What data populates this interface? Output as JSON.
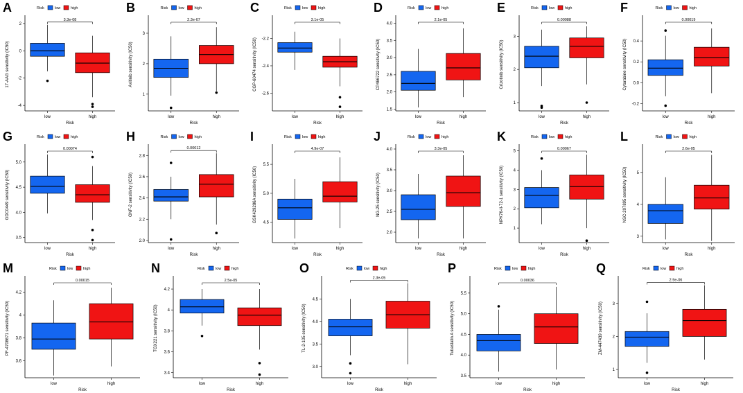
{
  "figure": {
    "legend_title": "Risk",
    "x_axis_label": "Risk",
    "groups": [
      "low",
      "high"
    ],
    "colors": {
      "low": "#1466f0",
      "high": "#f01414",
      "line": "#000000"
    }
  },
  "chart_data": [
    {
      "type": "box",
      "panel": "A",
      "ylabel": "17-AAG sensitivity (IC50)",
      "pvalue": "3.3e-08",
      "ylim": [
        -4.4,
        2.4
      ],
      "yticks": [
        -4,
        -2,
        0,
        2
      ],
      "groups": [
        {
          "name": "low",
          "q1": -0.4,
          "median": 0.0,
          "q3": 0.55,
          "whisker_low": -1.5,
          "whisker_high": 1.9,
          "outliers": [
            -2.2
          ]
        },
        {
          "name": "high",
          "q1": -1.6,
          "median": -0.9,
          "q3": -0.15,
          "whisker_low": -3.4,
          "whisker_high": 1.1,
          "outliers": [
            -3.9,
            -4.1
          ]
        }
      ]
    },
    {
      "type": "box",
      "panel": "B",
      "ylabel": "Axitinib sensitivity (IC50)",
      "pvalue": "2.3e-07",
      "ylim": [
        0.45,
        3.5
      ],
      "yticks": [
        1,
        2,
        3
      ],
      "groups": [
        {
          "name": "low",
          "q1": 1.55,
          "median": 1.85,
          "q3": 2.15,
          "whisker_low": 0.95,
          "whisker_high": 2.9,
          "outliers": [
            0.55
          ]
        },
        {
          "name": "high",
          "q1": 2.0,
          "median": 2.3,
          "q3": 2.6,
          "whisker_low": 1.1,
          "whisker_high": 3.2,
          "outliers": [
            1.05
          ]
        }
      ]
    },
    {
      "type": "box",
      "panel": "C",
      "ylabel": "CGP-60474 sensitivity (IC50)",
      "pvalue": "3.1e-05",
      "ylim": [
        -2.73,
        -2.05
      ],
      "yticks": [
        -2.6,
        -2.4,
        -2.2
      ],
      "groups": [
        {
          "name": "low",
          "q1": -2.3,
          "median": -2.27,
          "q3": -2.23,
          "whisker_low": -2.43,
          "whisker_high": -2.15,
          "outliers": []
        },
        {
          "name": "high",
          "q1": -2.41,
          "median": -2.37,
          "q3": -2.33,
          "whisker_low": -2.55,
          "whisker_high": -2.2,
          "outliers": [
            -2.63,
            -2.7
          ]
        }
      ]
    },
    {
      "type": "box",
      "panel": "D",
      "ylabel": "CP466722 sensitivity (IC50)",
      "pvalue": "2.1e-05",
      "ylim": [
        1.45,
        4.15
      ],
      "yticks": [
        1.5,
        2.0,
        2.5,
        3.0,
        3.5,
        4.0
      ],
      "ytick_labels": [
        "1.5",
        "2.0",
        "2.5",
        "3.0",
        "3.5",
        "4.0"
      ],
      "groups": [
        {
          "name": "low",
          "q1": 2.05,
          "median": 2.25,
          "q3": 2.6,
          "whisker_low": 1.55,
          "whisker_high": 3.25,
          "outliers": []
        },
        {
          "name": "high",
          "q1": 2.35,
          "median": 2.7,
          "q3": 3.12,
          "whisker_low": 1.85,
          "whisker_high": 3.85,
          "outliers": []
        }
      ]
    },
    {
      "type": "box",
      "panel": "E",
      "ylabel": "Crizotinib sensitivity (IC50)",
      "pvalue": "0.00088",
      "ylim": [
        0.75,
        3.55
      ],
      "yticks": [
        1,
        2,
        3
      ],
      "groups": [
        {
          "name": "low",
          "q1": 2.05,
          "median": 2.4,
          "q3": 2.7,
          "whisker_low": 1.5,
          "whisker_high": 3.2,
          "outliers": [
            0.9,
            0.85
          ]
        },
        {
          "name": "high",
          "q1": 2.35,
          "median": 2.7,
          "q3": 2.95,
          "whisker_low": 1.55,
          "whisker_high": 3.3,
          "outliers": [
            1.0
          ]
        }
      ]
    },
    {
      "type": "box",
      "panel": "F",
      "ylabel": "Cytarabine sensitivity (IC50)",
      "pvalue": "0.00019",
      "ylim": [
        -0.27,
        0.62
      ],
      "yticks": [
        -0.2,
        0.0,
        0.2,
        0.4
      ],
      "ytick_labels": [
        "-0.2",
        "0.0",
        "0.2",
        "0.4"
      ],
      "groups": [
        {
          "name": "low",
          "q1": 0.07,
          "median": 0.14,
          "q3": 0.22,
          "whisker_low": -0.13,
          "whisker_high": 0.45,
          "outliers": [
            0.5,
            -0.22
          ]
        },
        {
          "name": "high",
          "q1": 0.16,
          "median": 0.24,
          "q3": 0.34,
          "whisker_low": -0.1,
          "whisker_high": 0.52,
          "outliers": []
        }
      ]
    },
    {
      "type": "box",
      "panel": "G",
      "ylabel": "GDC0449 sensitivity (IC50)",
      "pvalue": "0.00074",
      "ylim": [
        3.4,
        5.3
      ],
      "yticks": [
        3.5,
        4.0,
        4.5,
        5.0
      ],
      "ytick_labels": [
        "3.5",
        "4.0",
        "4.5",
        "5.0"
      ],
      "groups": [
        {
          "name": "low",
          "q1": 4.38,
          "median": 4.52,
          "q3": 4.72,
          "whisker_low": 3.98,
          "whisker_high": 5.15,
          "outliers": []
        },
        {
          "name": "high",
          "q1": 4.2,
          "median": 4.35,
          "q3": 4.55,
          "whisker_low": 3.85,
          "whisker_high": 4.92,
          "outliers": [
            5.1,
            3.65,
            3.45
          ]
        }
      ]
    },
    {
      "type": "box",
      "panel": "H",
      "ylabel": "GNF-2 sensitivity (IC50)",
      "pvalue": "0.00012",
      "ylim": [
        1.98,
        2.88
      ],
      "yticks": [
        2.0,
        2.2,
        2.4,
        2.6,
        2.8
      ],
      "ytick_labels": [
        "2.0",
        "2.2",
        "2.4",
        "2.6",
        "2.8"
      ],
      "groups": [
        {
          "name": "low",
          "q1": 2.37,
          "median": 2.41,
          "q3": 2.48,
          "whisker_low": 2.2,
          "whisker_high": 2.6,
          "outliers": [
            2.73,
            2.01
          ]
        },
        {
          "name": "high",
          "q1": 2.41,
          "median": 2.53,
          "q3": 2.62,
          "whisker_low": 2.15,
          "whisker_high": 2.82,
          "outliers": [
            2.07
          ]
        }
      ]
    },
    {
      "type": "box",
      "panel": "I",
      "ylabel": "GSK429286A sensitivity (IC50)",
      "pvalue": "4.9e-07",
      "ylim": [
        4.15,
        5.8
      ],
      "yticks": [
        4.5,
        5.0,
        5.5
      ],
      "ytick_labels": [
        "4.5",
        "5.0",
        "5.5"
      ],
      "groups": [
        {
          "name": "low",
          "q1": 4.55,
          "median": 4.75,
          "q3": 4.9,
          "whisker_low": 4.22,
          "whisker_high": 5.25,
          "outliers": []
        },
        {
          "name": "high",
          "q1": 4.85,
          "median": 4.95,
          "q3": 5.2,
          "whisker_low": 4.4,
          "whisker_high": 5.62,
          "outliers": []
        }
      ]
    },
    {
      "type": "box",
      "panel": "J",
      "ylabel": "NG-25 sensitivity (IC50)",
      "pvalue": "3.3e-05",
      "ylim": [
        1.75,
        4.05
      ],
      "yticks": [
        2.0,
        2.5,
        3.0,
        3.5,
        4.0
      ],
      "ytick_labels": [
        "2.0",
        "2.5",
        "3.0",
        "3.5",
        "4.0"
      ],
      "groups": [
        {
          "name": "low",
          "q1": 2.3,
          "median": 2.55,
          "q3": 2.9,
          "whisker_low": 1.85,
          "whisker_high": 3.4,
          "outliers": []
        },
        {
          "name": "high",
          "q1": 2.62,
          "median": 2.95,
          "q3": 3.35,
          "whisker_low": 1.85,
          "whisker_high": 3.85,
          "outliers": []
        }
      ]
    },
    {
      "type": "box",
      "panel": "K",
      "ylabel": "NPK76-II-72-1 sensitivity (IC50)",
      "pvalue": "0.00067",
      "ylim": [
        0.25,
        5.2
      ],
      "yticks": [
        1,
        2,
        3,
        4,
        5
      ],
      "groups": [
        {
          "name": "low",
          "q1": 2.05,
          "median": 2.7,
          "q3": 3.1,
          "whisker_low": 1.2,
          "whisker_high": 4.0,
          "outliers": [
            4.6
          ]
        },
        {
          "name": "high",
          "q1": 2.5,
          "median": 3.15,
          "q3": 3.75,
          "whisker_low": 1.0,
          "whisker_high": 4.8,
          "outliers": [
            0.35
          ]
        }
      ]
    },
    {
      "type": "box",
      "panel": "L",
      "ylabel": "NSC-207895 sensitivity (IC50)",
      "pvalue": "2.6e-05",
      "ylim": [
        2.8,
        5.8
      ],
      "yticks": [
        3,
        4,
        5
      ],
      "groups": [
        {
          "name": "low",
          "q1": 3.4,
          "median": 3.8,
          "q3": 4.0,
          "whisker_low": 2.9,
          "whisker_high": 4.85,
          "outliers": []
        },
        {
          "name": "high",
          "q1": 3.85,
          "median": 4.2,
          "q3": 4.6,
          "whisker_low": 2.85,
          "whisker_high": 5.55,
          "outliers": []
        }
      ]
    },
    {
      "type": "box",
      "panel": "M",
      "ylabel": "PF-4708671 sensitivity (IC50)",
      "pvalue": "0.00015",
      "ylim": [
        3.45,
        4.32
      ],
      "yticks": [
        3.6,
        3.8,
        4.0,
        4.2
      ],
      "groups": [
        {
          "name": "low",
          "q1": 3.7,
          "median": 3.79,
          "q3": 3.93,
          "whisker_low": 3.47,
          "whisker_high": 4.13,
          "outliers": []
        },
        {
          "name": "high",
          "q1": 3.79,
          "median": 3.94,
          "q3": 4.1,
          "whisker_low": 3.55,
          "whisker_high": 4.24,
          "outliers": []
        }
      ]
    },
    {
      "type": "box",
      "panel": "N",
      "ylabel": "TGX221 sensitivity (IC50)",
      "pvalue": "2.5e-05",
      "ylim": [
        3.35,
        4.3
      ],
      "yticks": [
        3.4,
        3.6,
        3.8,
        4.0,
        4.2
      ],
      "groups": [
        {
          "name": "low",
          "q1": 3.97,
          "median": 4.03,
          "q3": 4.1,
          "whisker_low": 3.85,
          "whisker_high": 4.2,
          "outliers": [
            3.75
          ]
        },
        {
          "name": "high",
          "q1": 3.85,
          "median": 3.95,
          "q3": 4.02,
          "whisker_low": 3.62,
          "whisker_high": 4.2,
          "outliers": [
            3.49,
            3.38
          ]
        }
      ]
    },
    {
      "type": "box",
      "panel": "O",
      "ylabel": "TL-2-105 sensitivity (IC50)",
      "pvalue": "2.3e-05",
      "ylim": [
        2.75,
        4.95
      ],
      "yticks": [
        3.0,
        3.5,
        4.0,
        4.5
      ],
      "ytick_labels": [
        "3.0",
        "3.5",
        "4.0",
        "4.5"
      ],
      "groups": [
        {
          "name": "low",
          "q1": 3.68,
          "median": 3.88,
          "q3": 4.05,
          "whisker_low": 3.25,
          "whisker_high": 4.5,
          "outliers": [
            3.07,
            2.85
          ]
        },
        {
          "name": "high",
          "q1": 3.85,
          "median": 4.15,
          "q3": 4.45,
          "whisker_low": 3.05,
          "whisker_high": 4.85,
          "outliers": []
        }
      ]
    },
    {
      "type": "box",
      "panel": "P",
      "ylabel": "Tubastatin A sensitivity (IC50)",
      "pvalue": "0.00036",
      "ylim": [
        3.45,
        5.85
      ],
      "yticks": [
        3.5,
        4.0,
        4.5,
        5.0,
        5.5
      ],
      "ytick_labels": [
        "3.5",
        "4.0",
        "4.5",
        "5.0",
        "5.5"
      ],
      "groups": [
        {
          "name": "low",
          "q1": 4.1,
          "median": 4.35,
          "q3": 4.5,
          "whisker_low": 3.6,
          "whisker_high": 5.1,
          "outliers": [
            5.18
          ]
        },
        {
          "name": "high",
          "q1": 4.28,
          "median": 4.68,
          "q3": 5.0,
          "whisker_low": 3.65,
          "whisker_high": 5.65,
          "outliers": []
        }
      ]
    },
    {
      "type": "box",
      "panel": "Q",
      "ylabel": "ZM-447439 sensitivity (IC50)",
      "pvalue": "2.9e-06",
      "ylim": [
        0.75,
        3.75
      ],
      "yticks": [
        1,
        2,
        3
      ],
      "groups": [
        {
          "name": "low",
          "q1": 1.7,
          "median": 1.98,
          "q3": 2.15,
          "whisker_low": 1.2,
          "whisker_high": 2.7,
          "outliers": [
            3.05,
            0.9
          ]
        },
        {
          "name": "high",
          "q1": 2.0,
          "median": 2.48,
          "q3": 2.82,
          "whisker_low": 1.3,
          "whisker_high": 3.55,
          "outliers": []
        }
      ]
    }
  ]
}
